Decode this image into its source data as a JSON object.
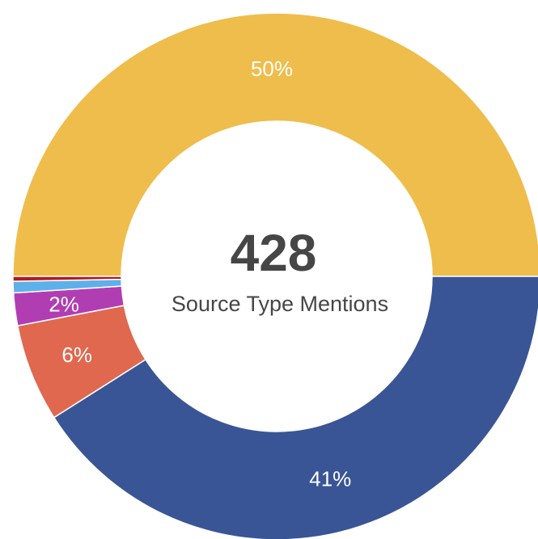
{
  "chart_data": {
    "type": "donut",
    "values": [
      50,
      41,
      6,
      2,
      0.7,
      0.3
    ],
    "value_labels": [
      "50%",
      "41%",
      "6%",
      "2%",
      null,
      null
    ],
    "colors": [
      "#efbd4c",
      "#3a5595",
      "#e0684f",
      "#b13db3",
      "#5eb0ea",
      "#b3191c"
    ],
    "center_value": 428,
    "center_label": "Source Type Mentions"
  }
}
